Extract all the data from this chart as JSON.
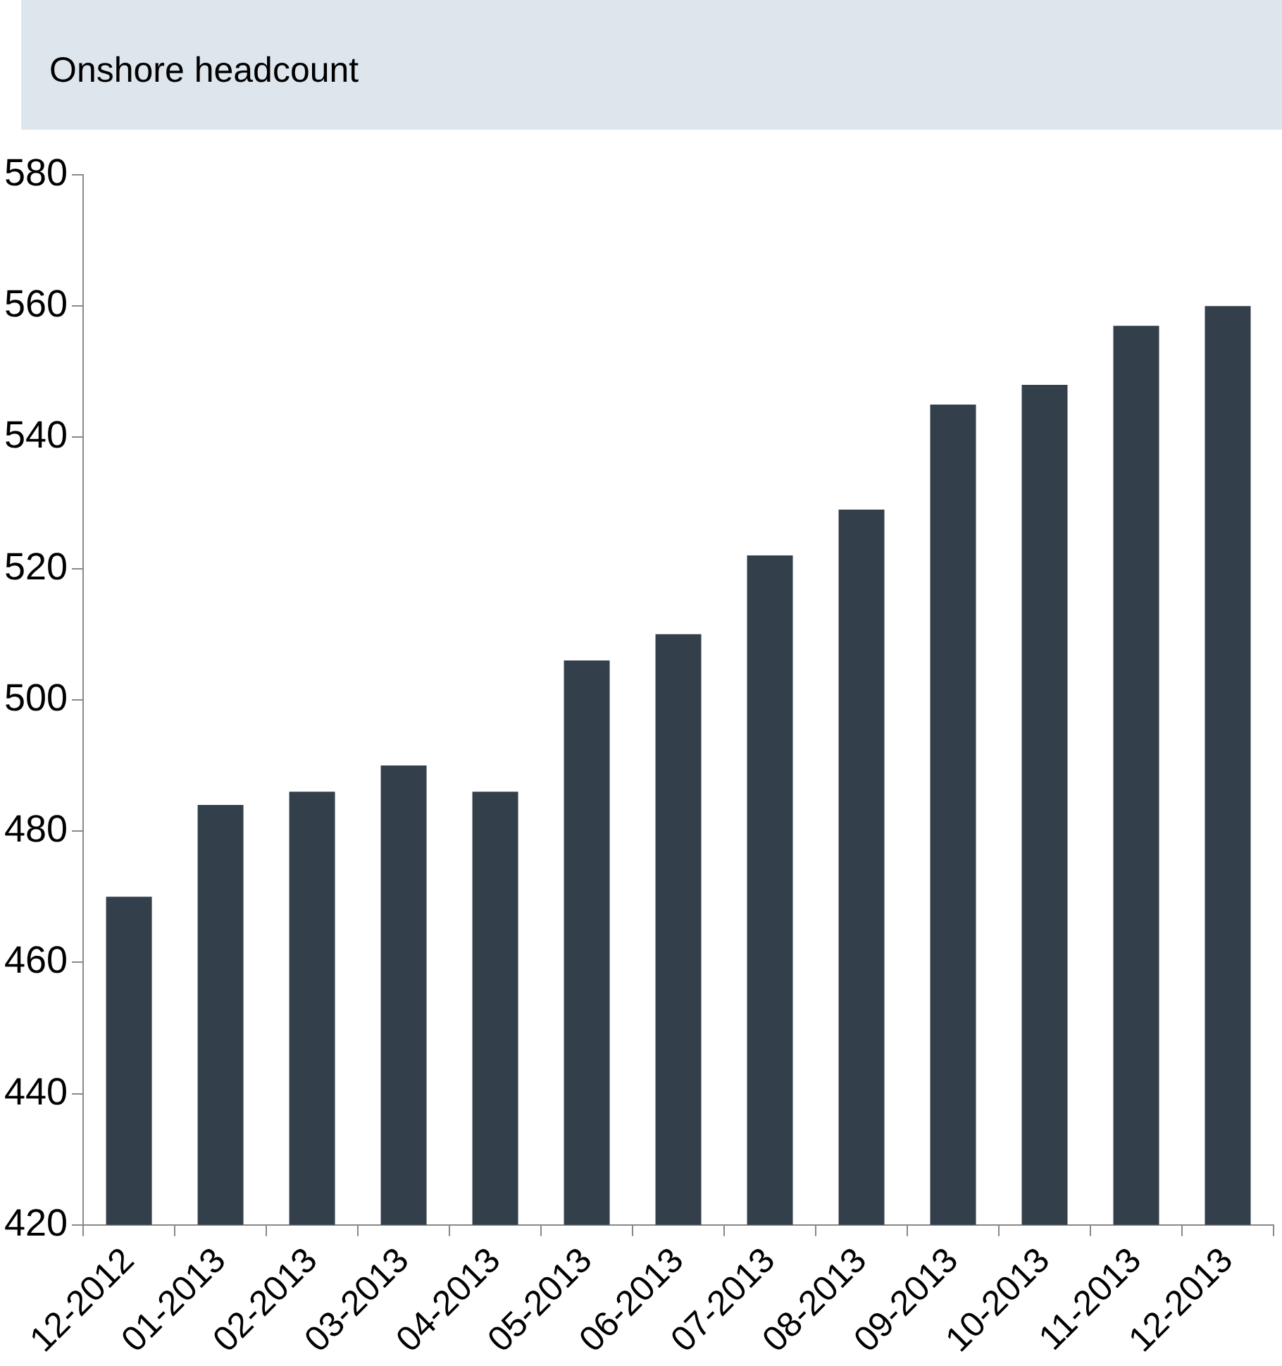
{
  "chart_data": {
    "type": "bar",
    "title": "Onshore headcount",
    "categories": [
      "12-2012",
      "01-2013",
      "02-2013",
      "03-2013",
      "04-2013",
      "05-2013",
      "06-2013",
      "07-2013",
      "08-2013",
      "09-2013",
      "10-2013",
      "11-2013",
      "12-2013"
    ],
    "values": [
      470,
      484,
      486,
      490,
      486,
      506,
      510,
      522,
      529,
      545,
      548,
      557,
      560
    ],
    "color": "#333f4a",
    "ylim": [
      420,
      580
    ],
    "yticks": [
      420,
      440,
      460,
      480,
      500,
      520,
      540,
      560,
      580
    ],
    "grid": false
  }
}
